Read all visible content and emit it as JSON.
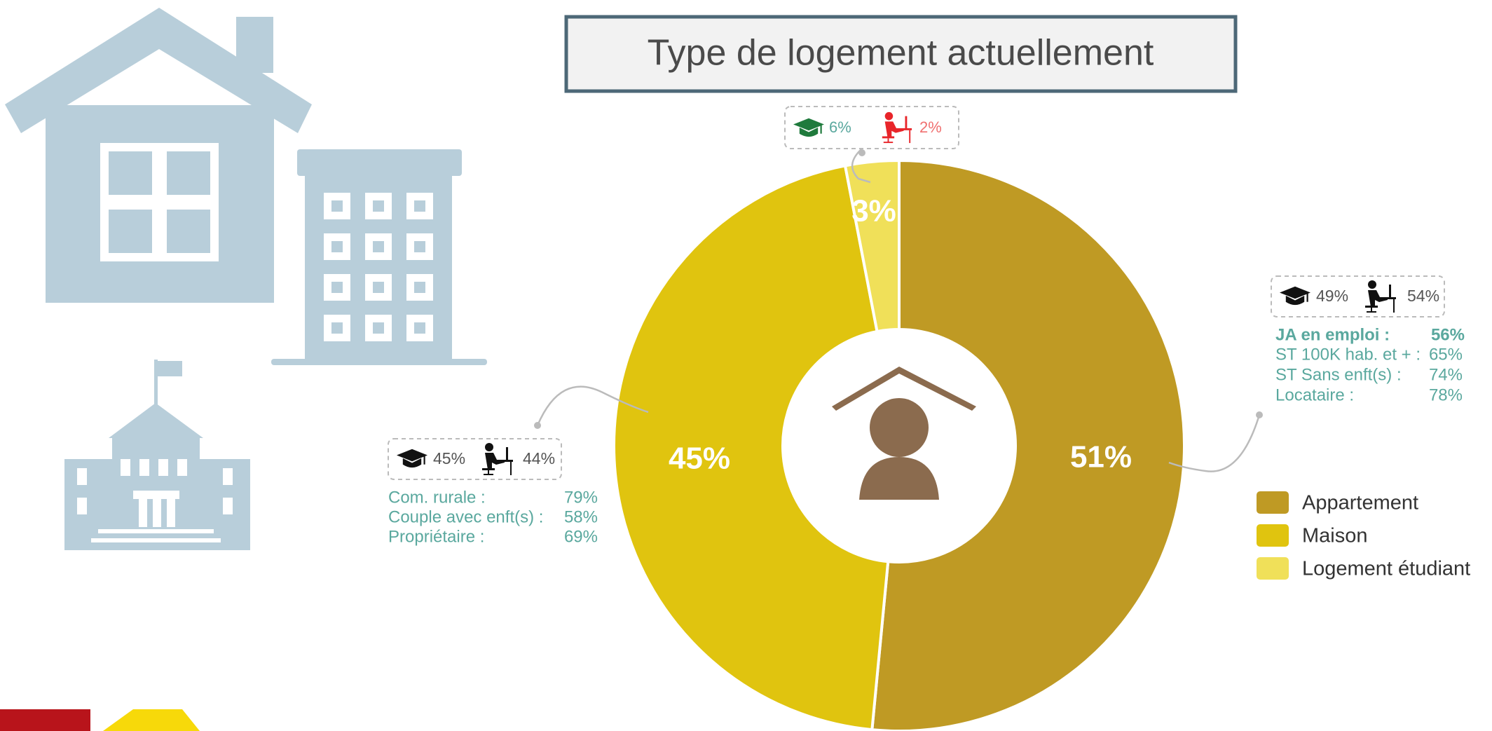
{
  "chart_data": {
    "type": "donut",
    "title": "Type de logement actuellement",
    "categories": [
      "Appartement",
      "Maison",
      "Logement étudiant"
    ],
    "values": [
      51,
      45,
      3
    ],
    "value_labels": [
      "51%",
      "45%",
      "3%"
    ],
    "colors": [
      "#bf9a24",
      "#e0c40f",
      "#f0e059"
    ],
    "legend": "right",
    "annotations": [
      {
        "student": "6%",
        "worker": "2%"
      },
      {
        "student": "49%",
        "worker": "54%",
        "rows": [
          [
            "JA en emploi :",
            "56%"
          ],
          [
            "ST 100K hab. et + :",
            "65%"
          ],
          [
            "ST Sans enft(s) :",
            "74%"
          ],
          [
            "Locataire :",
            "78%"
          ]
        ]
      },
      {
        "student": "45%",
        "worker": "44%",
        "rows": [
          [
            "Com. rurale :",
            "79%"
          ],
          [
            "Couple avec enft(s) :",
            "58%"
          ],
          [
            "Propriétaire :",
            "69%"
          ]
        ]
      }
    ]
  }
}
